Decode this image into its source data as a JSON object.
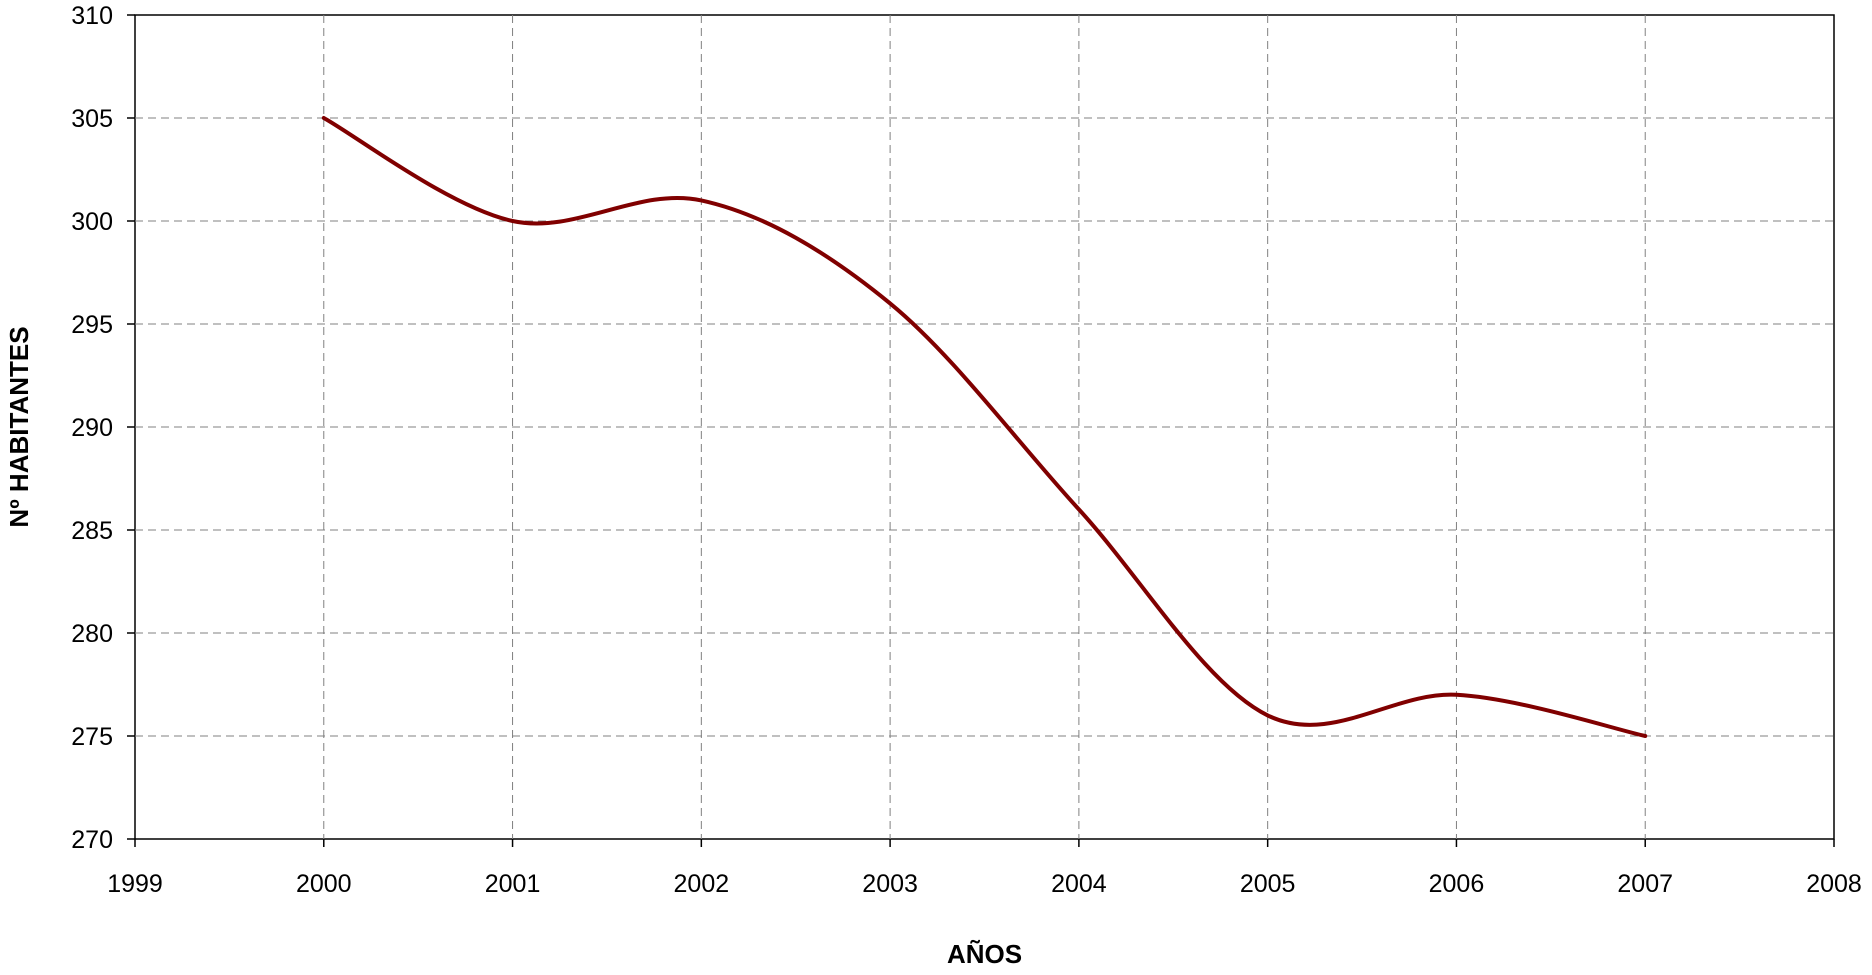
{
  "chart_data": {
    "type": "line",
    "title": "",
    "xlabel": "AÑOS",
    "ylabel": "Nº HABITANTES",
    "xlim": [
      1999,
      2008
    ],
    "ylim": [
      270,
      310
    ],
    "x_ticks": [
      "1999",
      "2000",
      "2001",
      "2002",
      "2003",
      "2004",
      "2005",
      "2006",
      "2007",
      "2008"
    ],
    "y_ticks": [
      "270",
      "275",
      "280",
      "285",
      "290",
      "295",
      "300",
      "305",
      "310"
    ],
    "grid": true,
    "legend": "none",
    "smoothed": true,
    "series": [
      {
        "color": "#800000",
        "x": [
          2000,
          2001,
          2002,
          2003,
          2004,
          2005,
          2006,
          2007
        ],
        "values": [
          305,
          300,
          301,
          296,
          286,
          276,
          277,
          275
        ]
      }
    ]
  }
}
